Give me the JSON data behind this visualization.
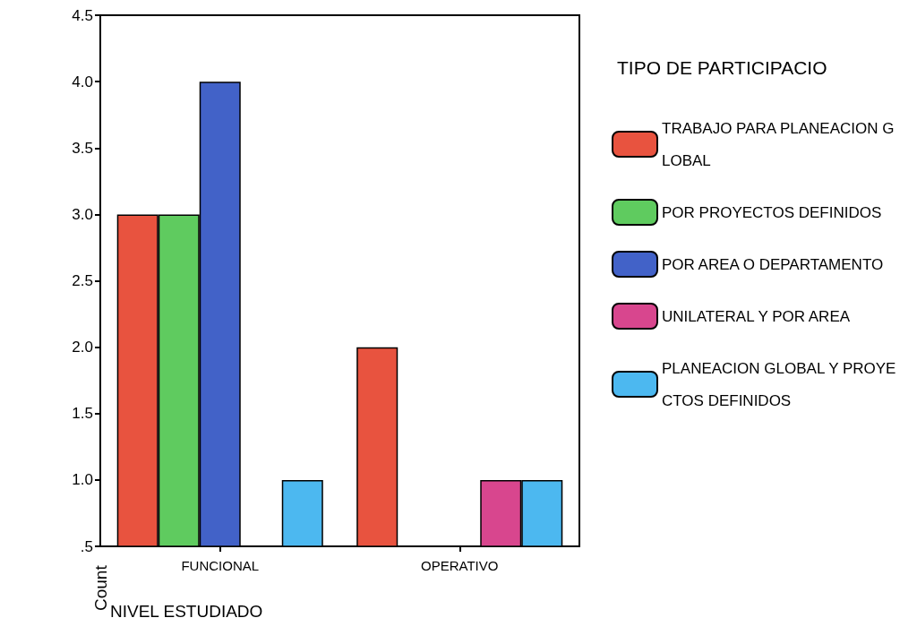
{
  "chart_data": {
    "type": "bar",
    "xlabel": "NIVEL ESTUDIADO",
    "ylabel": "Count",
    "legend_title": "TIPO DE PARTICIPACIO",
    "categories": [
      "FUNCIONAL",
      "OPERATIVO"
    ],
    "series": [
      {
        "name": "TRABAJO PARA PLANEACION GLOBAL",
        "color": "#e8533f",
        "values": [
          3,
          2
        ]
      },
      {
        "name": "POR PROYECTOS DEFINIDOS",
        "color": "#5fcb5f",
        "values": [
          3,
          null
        ]
      },
      {
        "name": "POR AREA O DEPARTAMENTO",
        "color": "#4262c8",
        "values": [
          4,
          null
        ]
      },
      {
        "name": "UNILATERAL Y POR AREA",
        "color": "#d8468e",
        "values": [
          null,
          1
        ]
      },
      {
        "name": "PLANEACION GLOBAL Y PROYECTOS DEFINIDOS",
        "color": "#4cb8f0",
        "values": [
          1,
          1
        ]
      }
    ],
    "ylim": [
      0.5,
      4.5
    ],
    "yticks": [
      {
        "value": 0.5,
        "label": ".5"
      },
      {
        "value": 1,
        "label": "1.0"
      },
      {
        "value": 1.5,
        "label": "1.5"
      },
      {
        "value": 2,
        "label": "2.0"
      },
      {
        "value": 2.5,
        "label": "2.5"
      },
      {
        "value": 3,
        "label": "3.0"
      },
      {
        "value": 3.5,
        "label": "3.5"
      },
      {
        "value": 4,
        "label": "4.0"
      },
      {
        "value": 4.5,
        "label": "4.5"
      }
    ],
    "grid": false,
    "legend": "right"
  }
}
